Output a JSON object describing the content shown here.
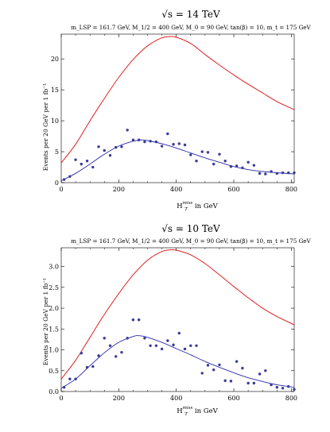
{
  "chart_data": [
    {
      "type": "line",
      "title": "√s = 14 TeV",
      "subtitle": "m_LSP = 161.7 GeV, M_1/2 = 400 GeV, M_0 = 90 GeV, tan(β) = 10, m_t = 175 GeV",
      "xlabel_main": "H",
      "xlabel_sub": "T",
      "xlabel_sup": "miss",
      "xlabel_suffix": "in GeV",
      "ylabel": "Events per 20 GeV per 1 fb⁻¹",
      "xlim": [
        0,
        810
      ],
      "ylim": [
        0,
        24
      ],
      "xticks": [
        0,
        200,
        400,
        600,
        800
      ],
      "yticks": [
        0,
        5,
        10,
        15,
        20
      ],
      "colors": {
        "red_curve": "#e02020",
        "blue_curve": "#2a2aa8",
        "points": "#3a3a9a"
      },
      "red_curve": {
        "x": [
          0,
          50,
          100,
          150,
          200,
          250,
          300,
          350,
          380,
          400,
          450,
          500,
          550,
          600,
          650,
          700,
          750,
          810
        ],
        "y": [
          3.2,
          6.2,
          10.0,
          13.6,
          17.0,
          19.9,
          22.1,
          23.4,
          23.6,
          23.5,
          22.5,
          20.7,
          19.0,
          17.4,
          15.9,
          14.5,
          13.1,
          11.8
        ]
      },
      "blue_curve": {
        "x": [
          0,
          50,
          100,
          150,
          200,
          250,
          280,
          300,
          350,
          400,
          450,
          500,
          550,
          600,
          650,
          700,
          750,
          810
        ],
        "y": [
          0.3,
          1.5,
          3.0,
          4.6,
          5.9,
          6.7,
          6.9,
          6.8,
          6.3,
          5.6,
          4.8,
          4.0,
          3.3,
          2.6,
          2.1,
          1.8,
          1.6,
          1.4
        ]
      },
      "points": {
        "x": [
          10,
          30,
          50,
          70,
          90,
          110,
          130,
          150,
          170,
          190,
          210,
          230,
          250,
          270,
          290,
          310,
          330,
          350,
          370,
          390,
          410,
          430,
          450,
          470,
          490,
          510,
          530,
          550,
          570,
          590,
          610,
          630,
          650,
          670,
          690,
          710,
          730,
          750,
          770,
          790,
          810
        ],
        "y": [
          0.5,
          1.0,
          3.7,
          3.0,
          3.5,
          2.5,
          5.8,
          5.2,
          4.4,
          5.7,
          5.8,
          8.5,
          6.9,
          6.9,
          6.6,
          6.7,
          6.6,
          5.9,
          7.9,
          6.2,
          6.3,
          6.1,
          4.5,
          3.5,
          5.0,
          4.9,
          3.0,
          4.6,
          3.5,
          2.6,
          2.7,
          2.4,
          3.3,
          2.8,
          1.5,
          1.4,
          1.8,
          1.5,
          1.6,
          1.6,
          1.6
        ]
      }
    },
    {
      "type": "line",
      "title": "√s = 10 TeV",
      "subtitle": "m_LSP = 161.7 GeV, M_1/2 = 400 GeV, M_0 = 90 GeV, tan(β) = 10, m_t = 175 GeV",
      "xlabel_main": "H",
      "xlabel_sub": "T",
      "xlabel_sup": "miss",
      "xlabel_suffix": "in GeV",
      "ylabel": "Events per 20 GeV per 1 fb⁻¹",
      "xlim": [
        0,
        810
      ],
      "ylim": [
        0,
        3.45
      ],
      "xticks": [
        0,
        200,
        400,
        600,
        800
      ],
      "yticks": [
        0.0,
        0.5,
        1.0,
        1.5,
        2.0,
        2.5,
        3.0
      ],
      "ytick_labels": [
        "0.0",
        "0.5",
        "1.0",
        "1.5",
        "2.0",
        "2.5",
        "3.0"
      ],
      "colors": {
        "red_curve": "#e02020",
        "blue_curve": "#2a2aa8",
        "points": "#3a3a9a"
      },
      "red_curve": {
        "x": [
          0,
          50,
          100,
          150,
          200,
          250,
          300,
          350,
          380,
          400,
          450,
          500,
          550,
          600,
          650,
          700,
          750,
          810
        ],
        "y": [
          0.3,
          0.75,
          1.3,
          1.85,
          2.35,
          2.8,
          3.15,
          3.36,
          3.4,
          3.39,
          3.28,
          3.07,
          2.8,
          2.52,
          2.25,
          2.0,
          1.8,
          1.6
        ]
      },
      "blue_curve": {
        "x": [
          0,
          50,
          100,
          150,
          200,
          250,
          270,
          300,
          350,
          400,
          450,
          500,
          550,
          600,
          650,
          700,
          750,
          810
        ],
        "y": [
          0.08,
          0.3,
          0.62,
          0.93,
          1.18,
          1.32,
          1.34,
          1.3,
          1.18,
          1.03,
          0.88,
          0.72,
          0.58,
          0.45,
          0.33,
          0.24,
          0.16,
          0.1
        ]
      },
      "points": {
        "x": [
          10,
          30,
          50,
          70,
          90,
          110,
          130,
          150,
          170,
          190,
          210,
          230,
          250,
          270,
          290,
          310,
          330,
          350,
          370,
          390,
          410,
          430,
          450,
          470,
          490,
          510,
          530,
          550,
          570,
          590,
          610,
          630,
          650,
          670,
          690,
          710,
          730,
          750,
          770,
          790,
          810
        ],
        "y": [
          0.1,
          0.3,
          0.3,
          0.92,
          0.58,
          0.6,
          0.86,
          1.28,
          1.1,
          0.84,
          0.94,
          1.28,
          1.72,
          1.72,
          1.28,
          1.1,
          1.1,
          1.02,
          1.22,
          1.12,
          1.4,
          1.02,
          1.1,
          1.1,
          0.44,
          0.63,
          0.52,
          0.64,
          0.26,
          0.25,
          0.72,
          0.56,
          0.2,
          0.2,
          0.42,
          0.5,
          0.16,
          0.1,
          0.08,
          0.12,
          0.05
        ]
      }
    }
  ]
}
